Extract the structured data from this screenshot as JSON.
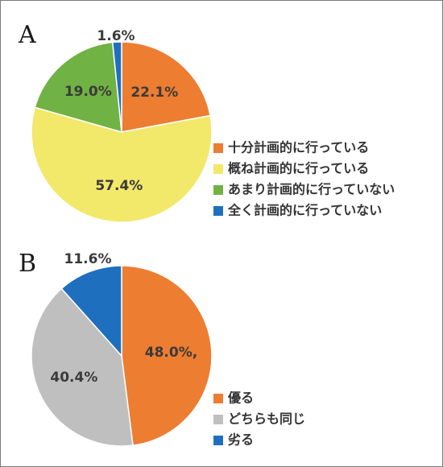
{
  "chart_data": [
    {
      "panel_label": "A",
      "type": "pie",
      "categories": [
        "十分計画的に行っている",
        "概ね計画的に行っている",
        "あまり計画的に行っていない",
        "全く計画的に行っていない"
      ],
      "values": [
        22.1,
        57.4,
        19.0,
        1.6
      ],
      "data_labels": [
        "22.1%",
        "57.4%",
        "19.0%",
        "1.6%"
      ],
      "colors": [
        "#ED7D31",
        "#F2E86A",
        "#70B244",
        "#1F6FBF"
      ],
      "legend_position": "bottom-right"
    },
    {
      "panel_label": "B",
      "type": "pie",
      "categories": [
        "優る",
        "どちらも同じ",
        "劣る"
      ],
      "values": [
        48.0,
        40.4,
        11.6
      ],
      "data_labels": [
        "48.0%,",
        "40.4%",
        "11.6%"
      ],
      "colors": [
        "#ED7D31",
        "#BFBFBF",
        "#1F6FBF"
      ],
      "legend_position": "bottom-right"
    }
  ]
}
